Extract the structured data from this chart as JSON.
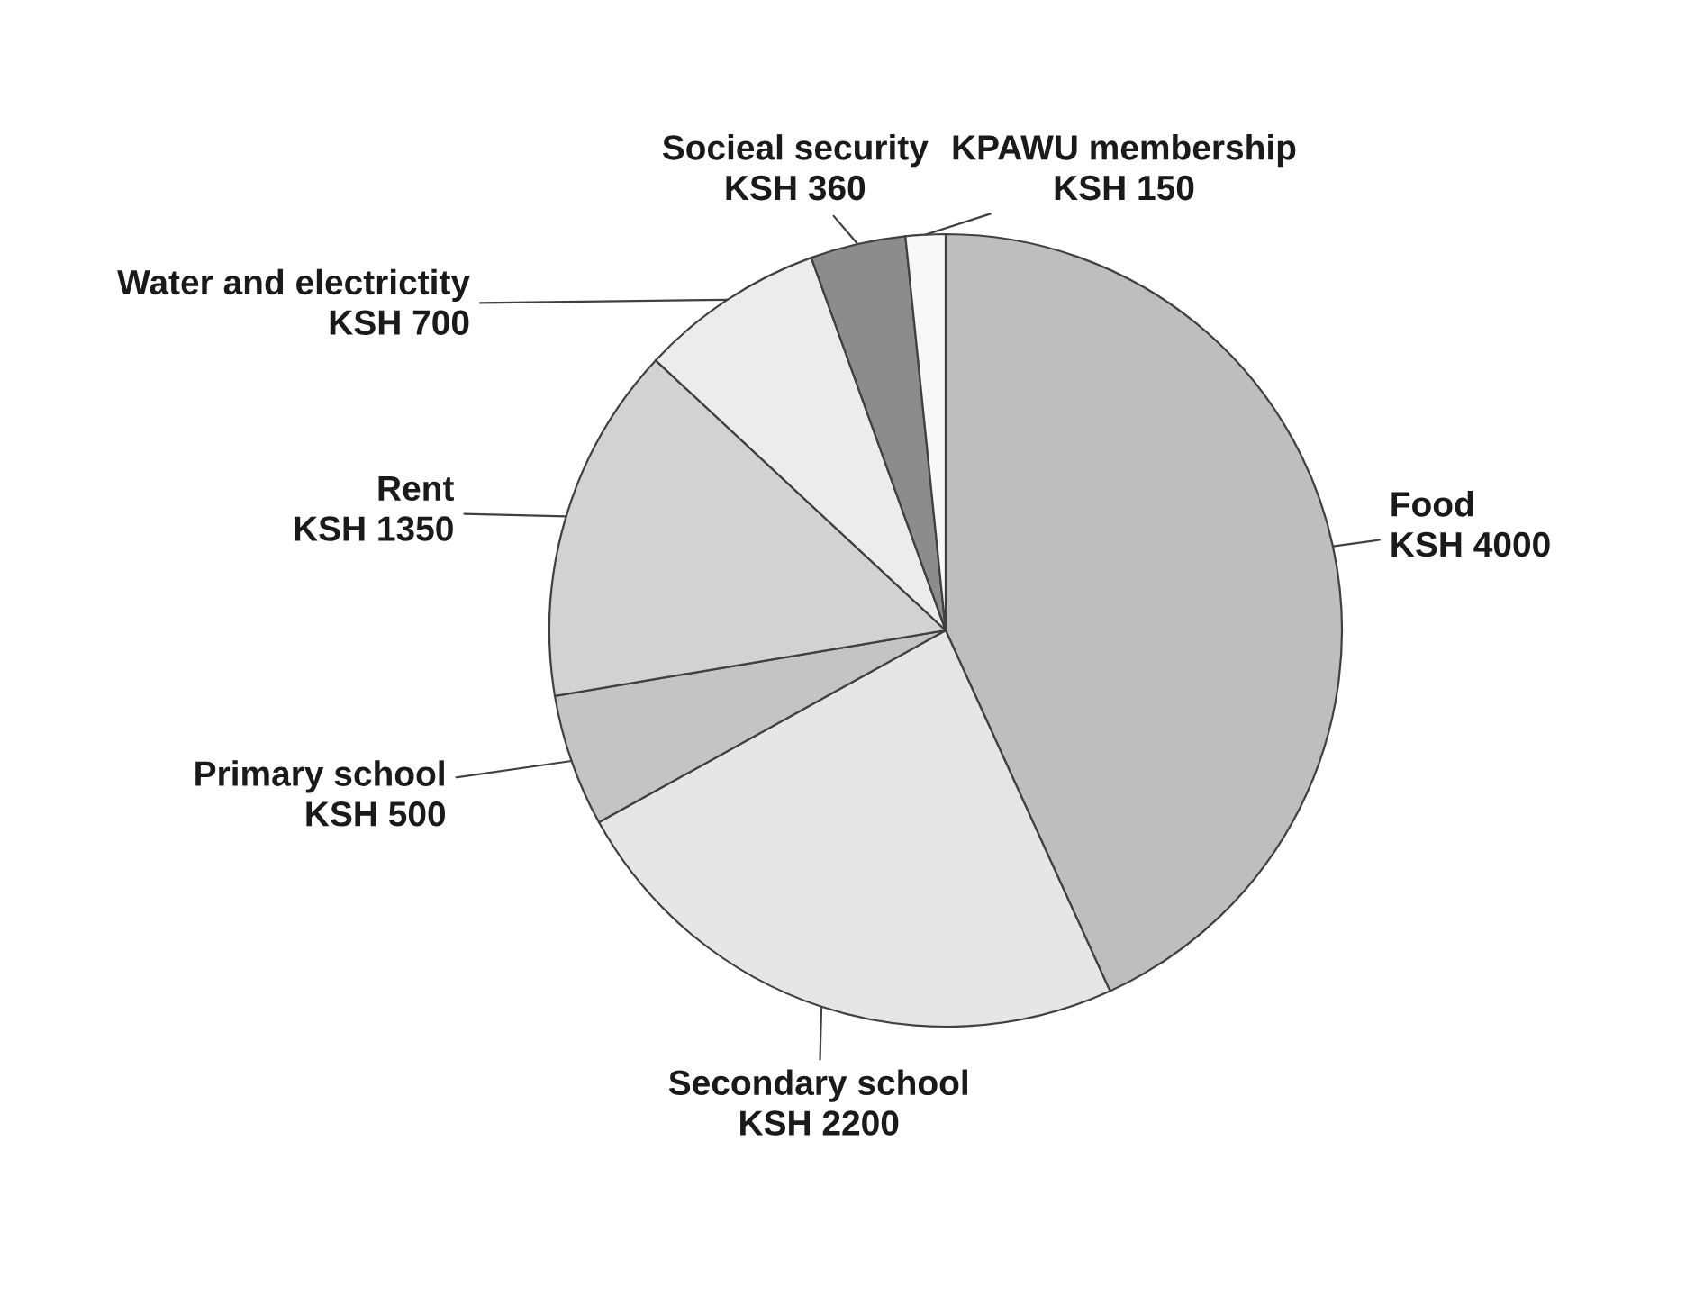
{
  "chart_data": {
    "type": "pie",
    "categories": [
      "Food",
      "Secondary school",
      "Primary school",
      "Rent",
      "Water and electrictity",
      "Socieal security",
      "KPAWU membership"
    ],
    "values": [
      4000,
      2200,
      500,
      1350,
      700,
      360,
      150
    ],
    "value_labels": [
      "KSH 4000",
      "KSH 2200",
      "KSH 500",
      "KSH 1350",
      "KSH 700",
      "KSH 360",
      "KSH 150"
    ],
    "colors": [
      "#bebebe",
      "#e6e6e6",
      "#c4c4c4",
      "#d2d2d2",
      "#ececec",
      "#8c8c8c",
      "#f8f8f8"
    ],
    "legend": false
  }
}
